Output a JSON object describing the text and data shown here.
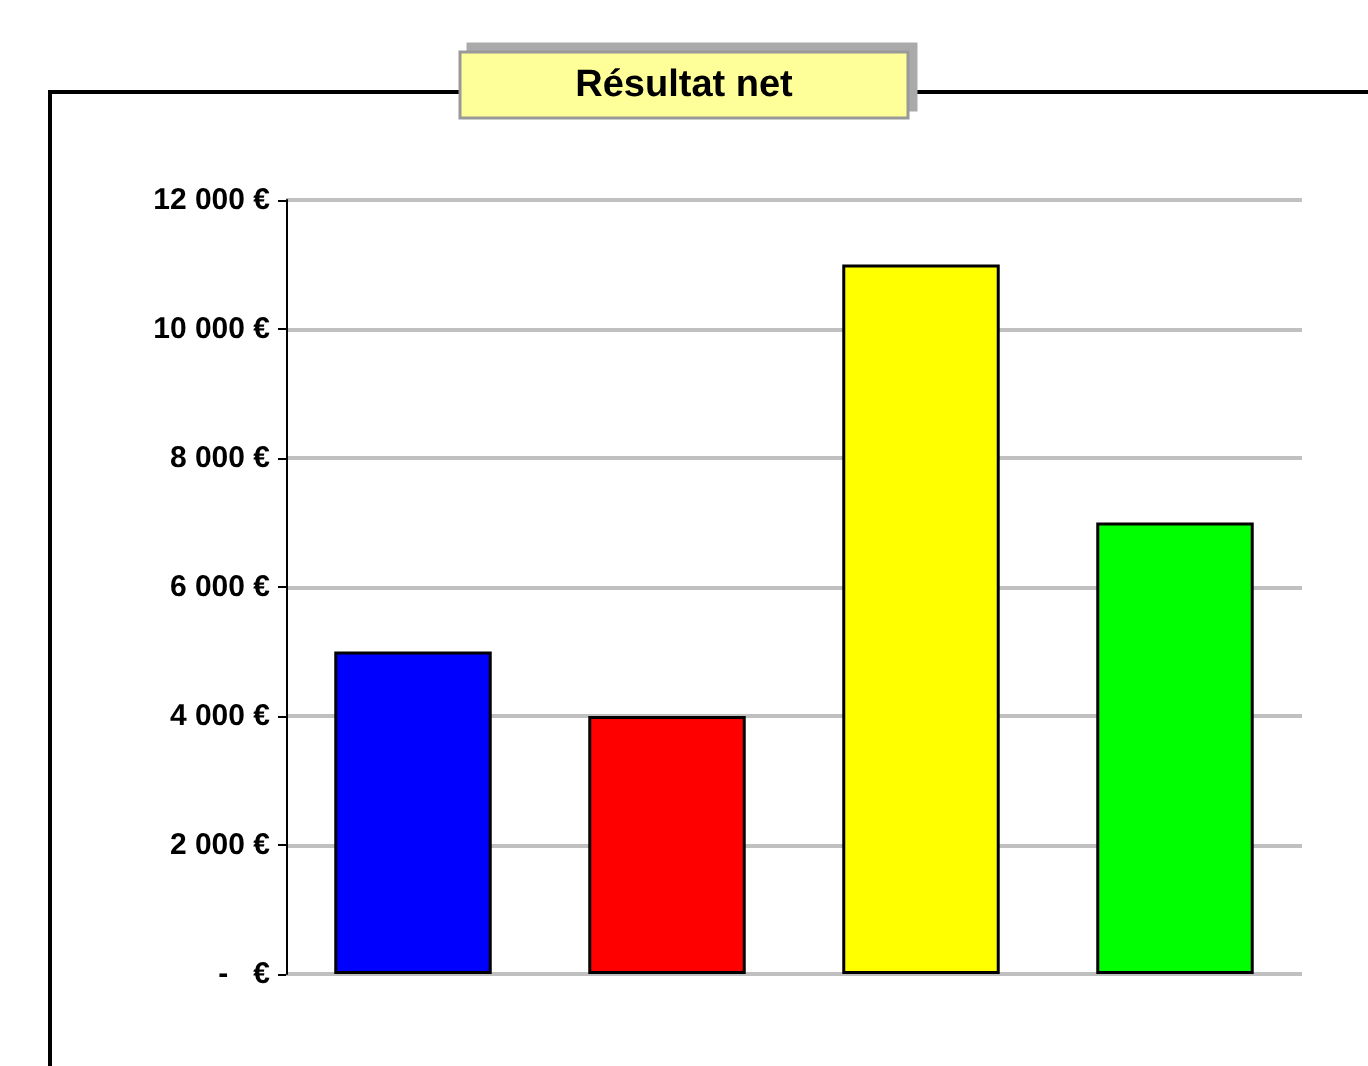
{
  "chart_data": {
    "type": "bar",
    "title": "Résultat net",
    "categories": [
      null,
      null,
      null,
      null
    ],
    "values": [
      5000,
      4000,
      11000,
      7000
    ],
    "colors": [
      "#0000ff",
      "#ff0000",
      "#ffff00",
      "#00ff00"
    ],
    "ylim": [
      0,
      12000
    ],
    "yticks": [
      {
        "value": 0,
        "label": "-   €"
      },
      {
        "value": 2000,
        "label": "2 000 €"
      },
      {
        "value": 4000,
        "label": "4 000 €"
      },
      {
        "value": 6000,
        "label": "6 000 €"
      },
      {
        "value": 8000,
        "label": "8 000 €"
      },
      {
        "value": 10000,
        "label": "10 000 €"
      },
      {
        "value": 12000,
        "label": "12 000 €"
      }
    ],
    "grid": "y"
  }
}
